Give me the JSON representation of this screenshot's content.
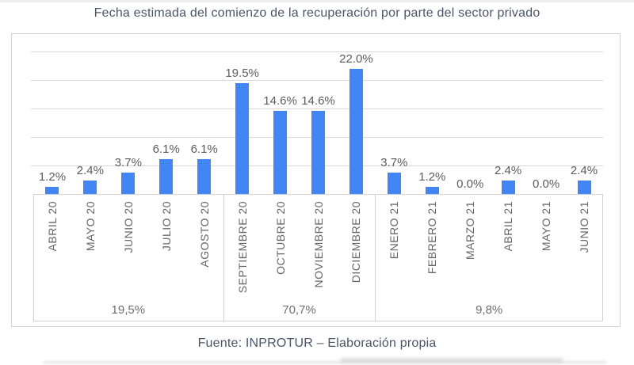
{
  "title": "Fecha estimada del comienzo de la recuperación por parte del sector privado",
  "footer": "Fuente: INPROTUR – Elaboración propia",
  "chart_data": {
    "type": "bar",
    "categories": [
      "ABRIL 20",
      "MAYO 20",
      "JUNIO 20",
      "JULIO 20",
      "AGOSTO 20",
      "SEPTIEMBRE 20",
      "OCTUBRE 20",
      "NOVIEMBRE 20",
      "DICIEMBRE 20",
      "ENERO 21",
      "FEBRERO 21",
      "MARZO 21",
      "ABRIL 21",
      "MAYO 21",
      "JUNIO 21"
    ],
    "values": [
      1.2,
      2.4,
      3.7,
      6.1,
      6.1,
      19.5,
      14.6,
      14.6,
      22.0,
      3.7,
      1.2,
      0.0,
      2.4,
      0.0,
      2.4
    ],
    "value_labels": [
      "1.2%",
      "2.4%",
      "3.7%",
      "6.1%",
      "6.1%",
      "19.5%",
      "14.6%",
      "14.6%",
      "22.0%",
      "3.7%",
      "1.2%",
      "0.0%",
      "2.4%",
      "0.0%",
      "2.4%"
    ],
    "groups": [
      {
        "label": "19,5%",
        "span": 5
      },
      {
        "label": "70,7%",
        "span": 4
      },
      {
        "label": "9,8%",
        "span": 6
      }
    ],
    "ylim": [
      0,
      25
    ],
    "gridline_step": 5,
    "grid": true,
    "legend": "none",
    "bar_color": "#4285f4"
  },
  "colors": {
    "bar": "#4285f4",
    "title_text": "#4a5568",
    "value_label": "#5c5c5c",
    "axis_label": "#666666",
    "group_label": "#6e6e6e",
    "gridline": "#d9d9d9",
    "border": "#d2d2d2"
  }
}
